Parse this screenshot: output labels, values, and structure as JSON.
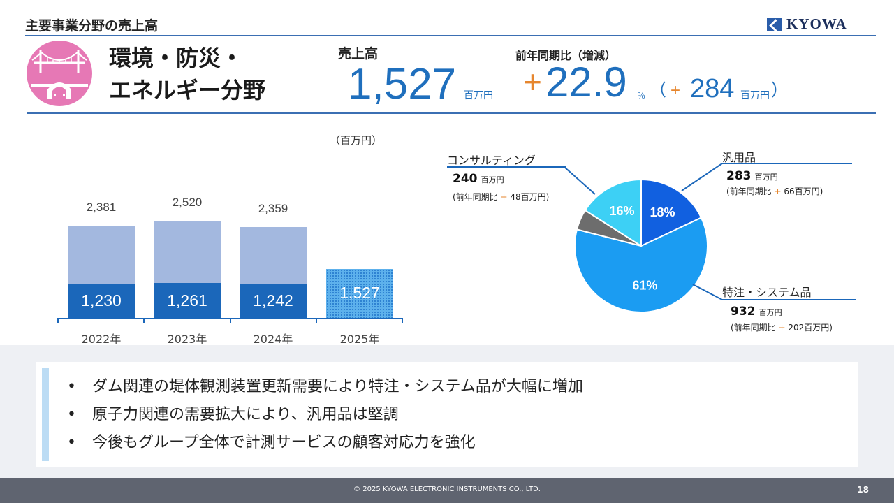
{
  "header": {
    "title": "主要事業分野の売上高",
    "logo_text": "KYOWA"
  },
  "segment": {
    "title_line1": "環境・防災・",
    "title_line2": "エネルギー分野",
    "emblem_icon": "bridge-tunnel-icon",
    "emblem_color": "#e678b5"
  },
  "kpi": {
    "sales_label": "売上高",
    "sales_value": "1,527",
    "sales_unit": "百万円",
    "yoy_label": "前年同期比（増減）",
    "yoy_sign": "+",
    "yoy_value": "22.9",
    "yoy_percent": "％",
    "diff_open": "（",
    "diff_sign": "+",
    "diff_value": "284",
    "diff_unit": "百万円",
    "diff_close": "）"
  },
  "unit_note": "（百万円）",
  "chart_data": [
    {
      "type": "bar",
      "categories": [
        "2022年",
        "2023年",
        "2024年",
        "2025年"
      ],
      "series": [
        {
          "values": [
            1230,
            1261,
            1242,
            1527
          ],
          "labels": [
            "1,230",
            "1,261",
            "1,242",
            "1,527"
          ]
        },
        {
          "values": [
            2381,
            2520,
            2359,
            null
          ],
          "labels": [
            "2,381",
            "2,520",
            "2,359",
            ""
          ]
        }
      ],
      "ylim": [
        0,
        2700
      ],
      "colors": {
        "lower": "#1b67ba",
        "upper": "#a3b8df",
        "current": "#5db1ec"
      }
    },
    {
      "type": "pie",
      "slices": [
        {
          "name": "汎用品",
          "value": 18,
          "label": "18%",
          "color": "#1160e0"
        },
        {
          "name": "特注・システム品",
          "value": 61,
          "label": "61%",
          "color": "#1b9cf2"
        },
        {
          "name": "",
          "value": 5,
          "label": "",
          "color": "#6d6d6d"
        },
        {
          "name": "コンサルティング",
          "value": 16,
          "label": "16%",
          "color": "#3dd0f5"
        }
      ]
    }
  ],
  "pie_labels": {
    "consulting": {
      "name": "コンサルティング",
      "value": "240",
      "unit": "百万円",
      "yoy_prefix": "(前年同期比",
      "yoy_sign": "+",
      "yoy_value": "48百万円)"
    },
    "general": {
      "name": "汎用品",
      "value": "283",
      "unit": "百万円",
      "yoy_prefix": "(前年同期比",
      "yoy_sign": "+",
      "yoy_value": "66百万円)"
    },
    "custom": {
      "name": "特注・システム品",
      "value": "932",
      "unit": "百万円",
      "yoy_prefix": "(前年同期比",
      "yoy_sign": "+",
      "yoy_value": "202百万円)"
    }
  },
  "notes": [
    "ダム関連の堤体観測装置更新需要により特注・システム品が大幅に増加",
    "原子力関連の需要拡大により、汎用品は堅調",
    "今後もグループ全体で計測サービスの顧客対応力を強化"
  ],
  "bullet": "•",
  "footer": {
    "copyright": "© 2025 KYOWA ELECTRONIC INSTRUMENTS CO., LTD.",
    "page": "18"
  }
}
